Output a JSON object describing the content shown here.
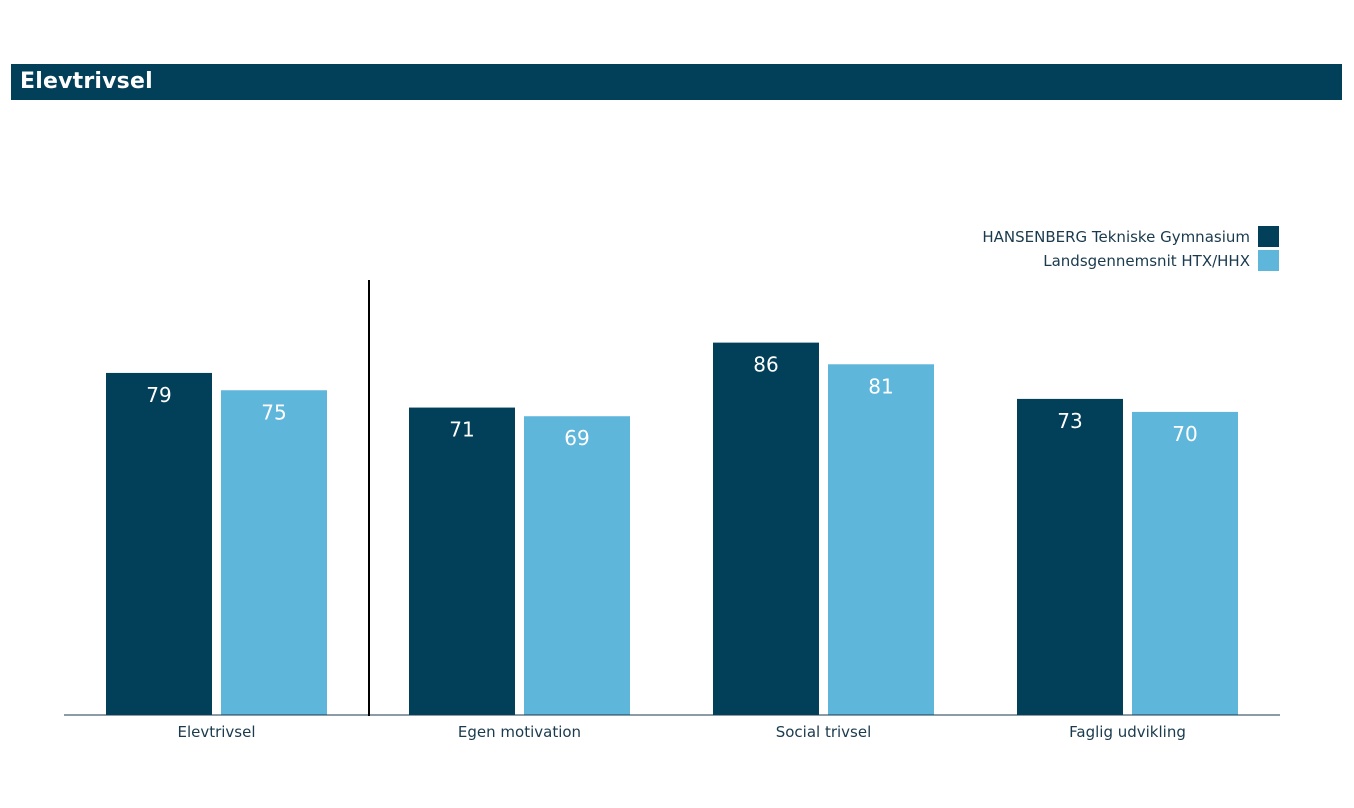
{
  "header": {
    "title": "Elevtrivsel"
  },
  "colors": {
    "primary": "#023f59",
    "secondary": "#5fb6db",
    "axis": "#1a3a4d",
    "label_text": "#ffffff"
  },
  "legend": {
    "items": [
      {
        "label": "HANSENBERG Tekniske Gymnasium",
        "color": "#023f59"
      },
      {
        "label": "Landsgennemsnit HTX/HHX",
        "color": "#5fb6db"
      }
    ]
  },
  "chart_data": {
    "type": "bar",
    "title": "Elevtrivsel",
    "categories": [
      "Elevtrivsel",
      "Egen motivation",
      "Social trivsel",
      "Faglig udvikling"
    ],
    "series": [
      {
        "name": "HANSENBERG Tekniske Gymnasium",
        "values": [
          79,
          71,
          86,
          73
        ]
      },
      {
        "name": "Landsgennemsnit HTX/HHX",
        "values": [
          75,
          69,
          81,
          70
        ]
      }
    ],
    "ylim": [
      0,
      100
    ],
    "grid": false,
    "legend_position": "top-right",
    "data_labels": true,
    "separator_after_first_category": true
  }
}
